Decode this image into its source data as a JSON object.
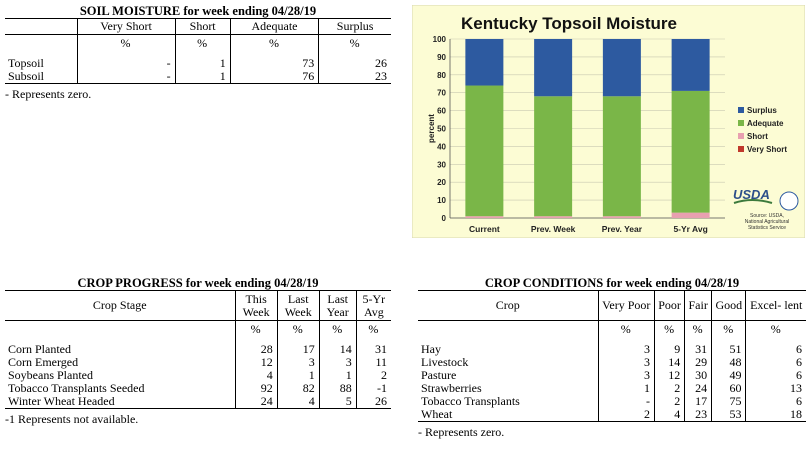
{
  "soil_moisture": {
    "title": "SOIL MOISTURE for week ending 04/28/19",
    "columns": [
      "",
      "Very Short",
      "Short",
      "Adequate",
      "Surplus"
    ],
    "units": [
      "",
      "%",
      "%",
      "%",
      "%"
    ],
    "rows": [
      [
        "Topsoil",
        "-",
        "1",
        "73",
        "26"
      ],
      [
        "Subsoil",
        "-",
        "1",
        "76",
        "23"
      ]
    ],
    "note": "- Represents zero."
  },
  "crop_progress": {
    "title": "CROP PROGRESS for week ending 04/28/19",
    "columns": [
      "Crop Stage",
      "This Week",
      "Last Week",
      "Last Year",
      "5-Yr Avg"
    ],
    "units": [
      "",
      "%",
      "%",
      "%",
      "%"
    ],
    "rows": [
      [
        "Corn Planted",
        "28",
        "17",
        "14",
        "31"
      ],
      [
        "Corn Emerged",
        "12",
        "3",
        "3",
        "11"
      ],
      [
        "Soybeans Planted",
        "4",
        "1",
        "1",
        "2"
      ],
      [
        "Tobacco Transplants Seeded",
        "92",
        "82",
        "88",
        "-1"
      ],
      [
        "Winter Wheat Headed",
        "24",
        "4",
        "5",
        "26"
      ]
    ],
    "note": "-1 Represents not available."
  },
  "crop_conditions": {
    "title": "CROP CONDITIONS for week ending 04/28/19",
    "columns": [
      "Crop",
      "Very Poor",
      "Poor",
      "Fair",
      "Good",
      "Excel- lent"
    ],
    "units": [
      "",
      "%",
      "%",
      "%",
      "%",
      "%"
    ],
    "rows": [
      [
        "Hay",
        "3",
        "9",
        "31",
        "51",
        "6"
      ],
      [
        "Livestock",
        "3",
        "14",
        "29",
        "48",
        "6"
      ],
      [
        "Pasture",
        "3",
        "12",
        "30",
        "49",
        "6"
      ],
      [
        "Strawberries",
        "1",
        "2",
        "24",
        "60",
        "13"
      ],
      [
        "Tobacco Transplants",
        "-",
        "2",
        "17",
        "75",
        "6"
      ],
      [
        "Wheat",
        "2",
        "4",
        "23",
        "53",
        "18"
      ]
    ],
    "note": "- Represents zero."
  },
  "chart_data": {
    "type": "bar",
    "stacked": true,
    "title": "Kentucky Topsoil Moisture",
    "ylabel": "percent",
    "xlabel": "",
    "ylim": [
      0,
      100
    ],
    "yticks": [
      0,
      10,
      20,
      30,
      40,
      50,
      60,
      70,
      80,
      90,
      100
    ],
    "categories": [
      "Current",
      "Prev. Week",
      "Prev. Year",
      "5-Yr Avg"
    ],
    "series": [
      {
        "name": "Very Short",
        "color": "#c0392b",
        "values": [
          0,
          0,
          0,
          0
        ]
      },
      {
        "name": "Short",
        "color": "#e8a0b0",
        "values": [
          1,
          1,
          1,
          3
        ]
      },
      {
        "name": "Adequate",
        "color": "#7ab648",
        "values": [
          73,
          67,
          67,
          68
        ]
      },
      {
        "name": "Surplus",
        "color": "#2d5aa0",
        "values": [
          26,
          32,
          32,
          29
        ]
      }
    ],
    "legend_order": [
      "Surplus",
      "Adequate",
      "Short",
      "Very Short"
    ],
    "legend_position": "right",
    "background": "#fcfcd4",
    "logo_text": "USDA",
    "source_note": "Source: USDA, National Agricultural Statistics Service"
  }
}
